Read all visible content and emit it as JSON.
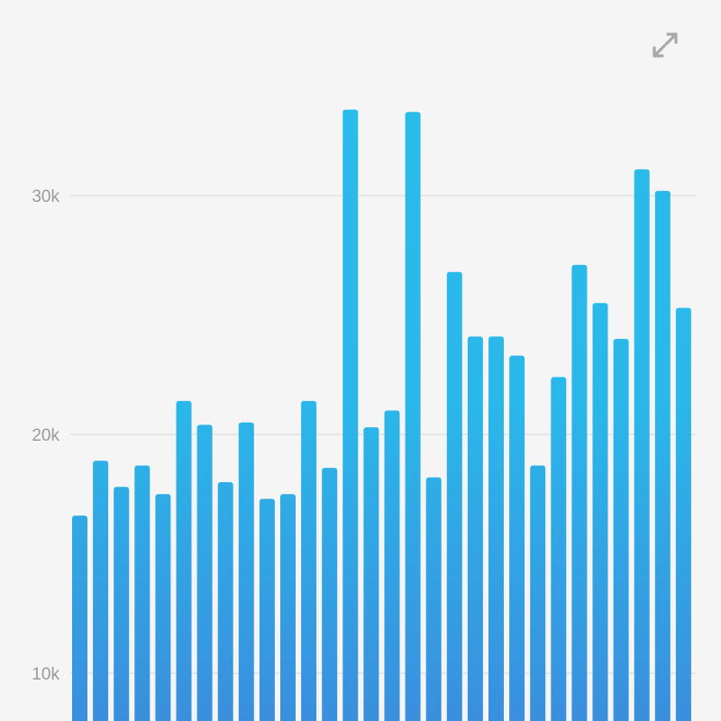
{
  "toolbar": {
    "expand_icon": "expand-arrows-icon"
  },
  "colors": {
    "background": "#f5f5f5",
    "bar_top": "#29bdea",
    "bar_bottom": "#3a8fdd",
    "grid": "#e2e2e2",
    "tick_text": "#9a9a9a",
    "icon": "#a8a8a8"
  },
  "chart_data": {
    "type": "bar",
    "grid": true,
    "ylim": [
      8000,
      35500
    ],
    "yticks": [
      {
        "value": 10000,
        "label": "10k"
      },
      {
        "value": 20000,
        "label": "20k"
      },
      {
        "value": 30000,
        "label": "30k"
      }
    ],
    "values": [
      16600,
      18900,
      17800,
      18700,
      17500,
      21400,
      20400,
      18000,
      20500,
      17300,
      17500,
      21400,
      18600,
      33600,
      20300,
      21000,
      33500,
      18200,
      26800,
      24100,
      24100,
      23300,
      18700,
      22400,
      27100,
      25500,
      24000,
      31100,
      30200,
      25300
    ]
  }
}
